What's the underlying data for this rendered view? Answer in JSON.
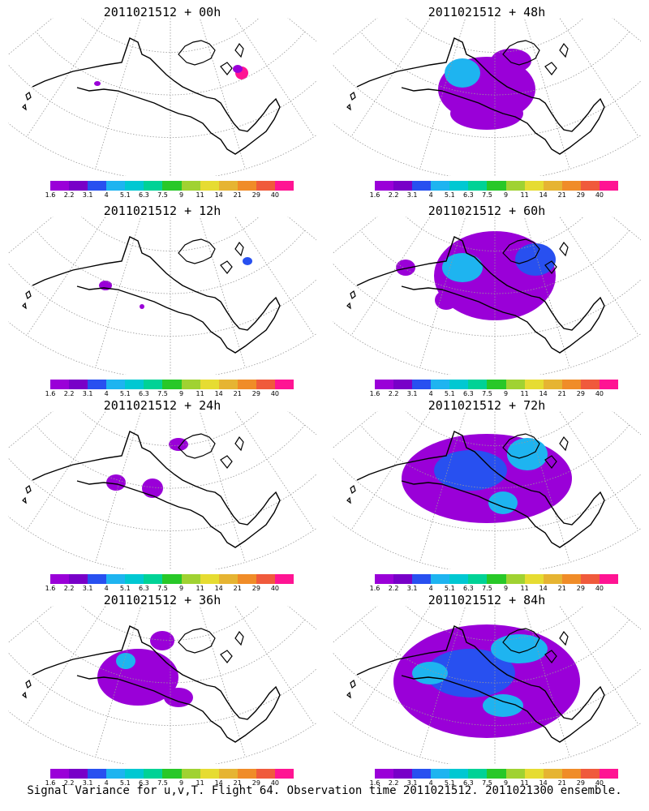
{
  "panels": [
    {
      "id": "p00",
      "title": "2011021512 + 00h",
      "blobs": [
        [
          120,
          103,
          4,
          3,
          "#9a00d8"
        ],
        [
          298,
          90,
          8,
          8,
          "#ff1493"
        ],
        [
          293,
          85,
          6,
          5,
          "#9a00d8"
        ]
      ]
    },
    {
      "id": "p48",
      "title": "2011021512 + 48h",
      "blobs": [
        [
          600,
          110,
          60,
          40,
          "#9a00d8"
        ],
        [
          570,
          90,
          22,
          18,
          "#1eb4f0"
        ],
        [
          630,
          75,
          25,
          15,
          "#9a00d8"
        ],
        [
          600,
          140,
          45,
          20,
          "#9a00d8"
        ]
      ]
    },
    {
      "id": "p12",
      "title": "2011021512 + 12h",
      "blobs": [
        [
          130,
          352,
          8,
          6,
          "#9a00d8"
        ],
        [
          305,
          322,
          6,
          5,
          "#2850f0"
        ],
        [
          175,
          378,
          3,
          3,
          "#9a00d8"
        ]
      ]
    },
    {
      "id": "p60",
      "title": "2011021512 + 60h",
      "blobs": [
        [
          610,
          340,
          75,
          55,
          "#9a00d8"
        ],
        [
          570,
          330,
          25,
          18,
          "#1eb4f0"
        ],
        [
          660,
          320,
          25,
          20,
          "#2850f0"
        ],
        [
          550,
          370,
          14,
          12,
          "#9a00d8"
        ],
        [
          500,
          330,
          12,
          10,
          "#9a00d8"
        ]
      ]
    },
    {
      "id": "p24",
      "title": "2011021512 + 24h",
      "blobs": [
        [
          143,
          595,
          12,
          10,
          "#9a00d8"
        ],
        [
          188,
          602,
          13,
          12,
          "#9a00d8"
        ],
        [
          220,
          548,
          12,
          8,
          "#9a00d8"
        ]
      ]
    },
    {
      "id": "p72",
      "title": "2011021512 + 72h",
      "blobs": [
        [
          600,
          590,
          105,
          55,
          "#9a00d8"
        ],
        [
          580,
          580,
          45,
          25,
          "#2850f0"
        ],
        [
          650,
          560,
          25,
          20,
          "#1eb4f0"
        ],
        [
          620,
          620,
          18,
          14,
          "#1eb4f0"
        ]
      ]
    },
    {
      "id": "p36",
      "title": "2011021512 + 36h",
      "blobs": [
        [
          170,
          835,
          50,
          35,
          "#9a00d8"
        ],
        [
          155,
          815,
          12,
          10,
          "#1eb4f0"
        ],
        [
          200,
          790,
          15,
          12,
          "#9a00d8"
        ],
        [
          220,
          860,
          18,
          12,
          "#9a00d8"
        ]
      ]
    },
    {
      "id": "p84",
      "title": "2011021512 + 84h",
      "blobs": [
        [
          600,
          840,
          115,
          70,
          "#9a00d8"
        ],
        [
          580,
          830,
          55,
          30,
          "#2850f0"
        ],
        [
          640,
          800,
          35,
          18,
          "#1eb4f0"
        ],
        [
          530,
          830,
          22,
          14,
          "#1eb4f0"
        ],
        [
          620,
          870,
          25,
          14,
          "#1eb4f0"
        ]
      ]
    }
  ],
  "colorbar": {
    "colors": [
      "#9a00d8",
      "#7800c8",
      "#2850f0",
      "#1eb4f0",
      "#00c8d2",
      "#00d296",
      "#28c828",
      "#a0d232",
      "#e6dc32",
      "#e6b432",
      "#f08c28",
      "#f05a3c",
      "#ff1493"
    ],
    "labels": [
      "1.6",
      "2.2",
      "3.1",
      "4",
      "5.1",
      "6.3",
      "7.5",
      "9",
      "11",
      "14",
      "21",
      "29",
      "40"
    ]
  },
  "footer": "Signal Variance for u,v,T. Flight 64. Observation time 2011021512. 2011021300 ensemble.",
  "legend_colors": {
    "land_outline": "#000000",
    "graticule": "#999999"
  }
}
